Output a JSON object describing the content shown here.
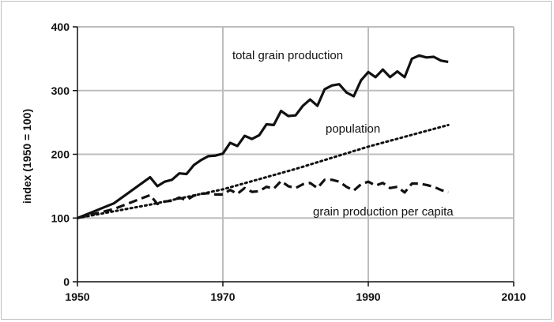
{
  "chart_data": {
    "type": "line",
    "title": "",
    "xlabel": "",
    "ylabel": "index (1950 = 100)",
    "xlim": [
      1950,
      2010
    ],
    "ylim": [
      0,
      400
    ],
    "x_ticks": [
      1950,
      1970,
      1990,
      2010
    ],
    "y_ticks": [
      0,
      100,
      200,
      300,
      400
    ],
    "grid": true,
    "legend": "none",
    "series": [
      {
        "name": "total grain production",
        "style": "solid",
        "color": "#111111",
        "points": [
          [
            1950,
            100
          ],
          [
            1955,
            123
          ],
          [
            1960,
            164
          ],
          [
            1961,
            150
          ],
          [
            1962,
            157
          ],
          [
            1963,
            160
          ],
          [
            1964,
            170
          ],
          [
            1965,
            169
          ],
          [
            1966,
            183
          ],
          [
            1967,
            191
          ],
          [
            1968,
            197
          ],
          [
            1969,
            198
          ],
          [
            1970,
            201
          ],
          [
            1971,
            218
          ],
          [
            1972,
            213
          ],
          [
            1973,
            229
          ],
          [
            1974,
            224
          ],
          [
            1975,
            230
          ],
          [
            1976,
            247
          ],
          [
            1977,
            246
          ],
          [
            1978,
            268
          ],
          [
            1979,
            260
          ],
          [
            1980,
            261
          ],
          [
            1981,
            276
          ],
          [
            1982,
            286
          ],
          [
            1983,
            276
          ],
          [
            1984,
            302
          ],
          [
            1985,
            308
          ],
          [
            1986,
            310
          ],
          [
            1987,
            297
          ],
          [
            1988,
            291
          ],
          [
            1989,
            316
          ],
          [
            1990,
            329
          ],
          [
            1991,
            321
          ],
          [
            1992,
            333
          ],
          [
            1993,
            321
          ],
          [
            1994,
            330
          ],
          [
            1995,
            321
          ],
          [
            1996,
            350
          ],
          [
            1997,
            355
          ],
          [
            1998,
            352
          ],
          [
            1999,
            353
          ],
          [
            2000,
            347
          ],
          [
            2001,
            345
          ]
        ]
      },
      {
        "name": "population",
        "style": "dotted",
        "color": "#111111",
        "points": [
          [
            1950,
            100
          ],
          [
            1960,
            121
          ],
          [
            1970,
            145
          ],
          [
            1980,
            177
          ],
          [
            1990,
            212
          ],
          [
            2001,
            246
          ]
        ]
      },
      {
        "name": "grain production per capita",
        "style": "dashed",
        "color": "#111111",
        "points": [
          [
            1950,
            100
          ],
          [
            1955,
            114
          ],
          [
            1960,
            136
          ],
          [
            1961,
            122
          ],
          [
            1962,
            126
          ],
          [
            1963,
            127
          ],
          [
            1964,
            132
          ],
          [
            1965,
            128
          ],
          [
            1966,
            135
          ],
          [
            1967,
            138
          ],
          [
            1968,
            139
          ],
          [
            1969,
            137
          ],
          [
            1970,
            137
          ],
          [
            1971,
            144
          ],
          [
            1972,
            138
          ],
          [
            1973,
            147
          ],
          [
            1974,
            141
          ],
          [
            1975,
            142
          ],
          [
            1976,
            149
          ],
          [
            1977,
            146
          ],
          [
            1978,
            158
          ],
          [
            1979,
            150
          ],
          [
            1980,
            147
          ],
          [
            1981,
            153
          ],
          [
            1982,
            155
          ],
          [
            1983,
            147
          ],
          [
            1984,
            160
          ],
          [
            1985,
            160
          ],
          [
            1986,
            157
          ],
          [
            1987,
            149
          ],
          [
            1988,
            143
          ],
          [
            1989,
            153
          ],
          [
            1990,
            157
          ],
          [
            1991,
            151
          ],
          [
            1992,
            155
          ],
          [
            1993,
            147
          ],
          [
            1994,
            149
          ],
          [
            1995,
            140
          ],
          [
            1996,
            154
          ],
          [
            1997,
            154
          ],
          [
            1998,
            152
          ],
          [
            1999,
            149
          ],
          [
            2000,
            144
          ],
          [
            2001,
            140
          ]
        ]
      }
    ]
  }
}
